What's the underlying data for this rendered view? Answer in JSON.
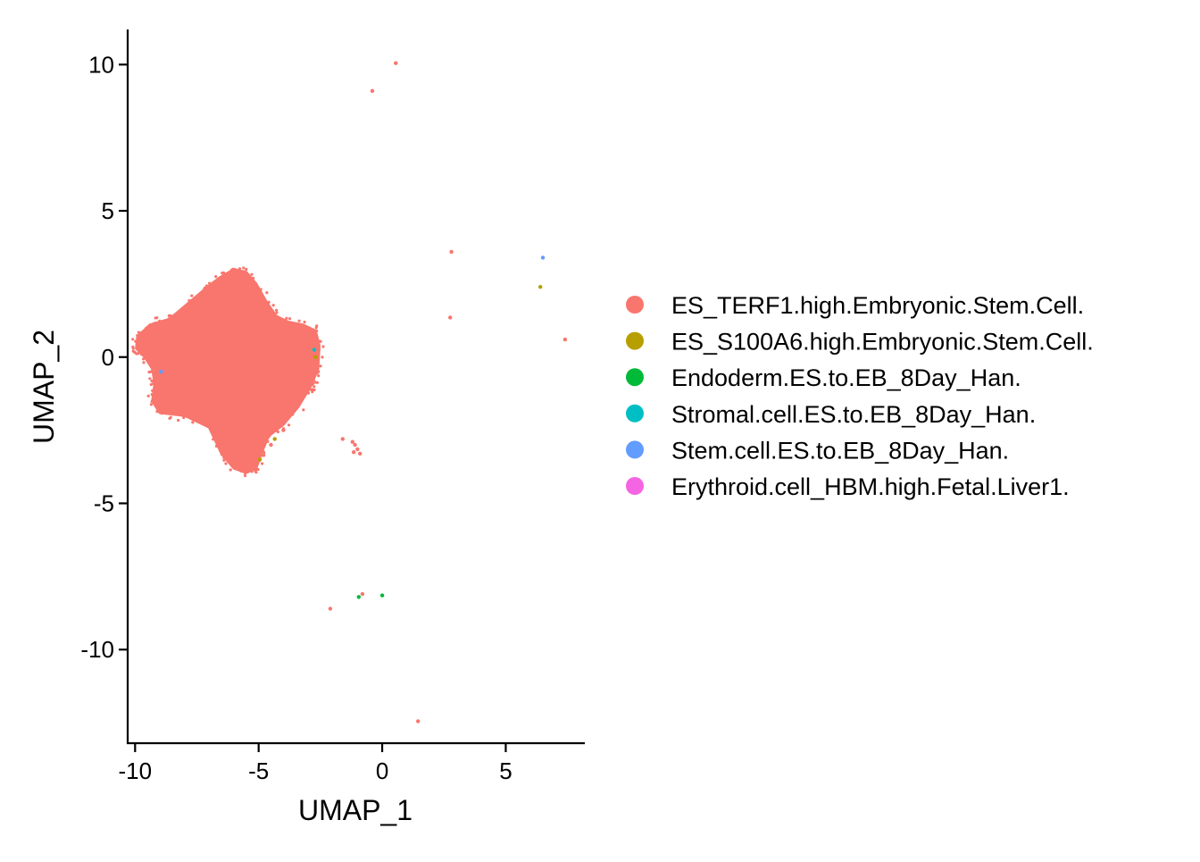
{
  "chart_data": {
    "type": "scatter",
    "title": "",
    "xlabel": "UMAP_1",
    "ylabel": "UMAP_2",
    "xlim": [
      -10.3,
      8.2
    ],
    "ylim": [
      -13.2,
      11.2
    ],
    "x_ticks": [
      -10,
      -5,
      0,
      5
    ],
    "x_tick_labels": [
      "-10",
      "-5",
      "0",
      "5"
    ],
    "y_ticks": [
      -10,
      -5,
      0,
      5,
      10
    ],
    "y_tick_labels": [
      "-10",
      "-5",
      "0",
      "5",
      "10"
    ],
    "grid": false,
    "legend_position": "right",
    "main_cluster": {
      "series": "ES_TERF1.high.Embryonic.Stem.Cell.",
      "x_range": [
        -9.9,
        -2.6
      ],
      "y_range": [
        -3.9,
        3.0
      ],
      "center": [
        -5.8,
        0.0
      ]
    },
    "series": [
      {
        "name": "ES_TERF1.high.Embryonic.Stem.Cell.",
        "color": "#F8766D",
        "points": [
          [
            0.55,
            10.05
          ],
          [
            -0.4,
            9.1
          ],
          [
            2.8,
            3.6
          ],
          [
            2.75,
            1.35
          ],
          [
            7.4,
            0.6
          ],
          [
            -1.6,
            -2.8
          ],
          [
            -1.2,
            -2.9
          ],
          [
            -1.1,
            -3.0
          ],
          [
            -1.0,
            -3.15
          ],
          [
            -1.15,
            -3.25
          ],
          [
            -0.9,
            -3.3
          ],
          [
            -0.8,
            -8.1
          ],
          [
            -2.1,
            -8.6
          ],
          [
            1.45,
            -12.45
          ],
          [
            -2.6,
            -0.5
          ],
          [
            -2.7,
            -0.2
          ],
          [
            -4.0,
            -2.5
          ],
          [
            -4.5,
            -3.0
          ]
        ]
      },
      {
        "name": "ES_S100A6.high.Embryonic.Stem.Cell.",
        "color": "#B79F00",
        "points": [
          [
            6.4,
            2.4
          ],
          [
            -4.35,
            -2.8
          ],
          [
            -4.95,
            -3.5
          ],
          [
            -2.7,
            0.0
          ]
        ]
      },
      {
        "name": "Endoderm.ES.to.EB_8Day_Han.",
        "color": "#00BA38",
        "points": [
          [
            -0.95,
            -8.2
          ],
          [
            0.0,
            -8.15
          ]
        ]
      },
      {
        "name": "Stromal.cell.ES.to.EB_8Day_Han.",
        "color": "#00BFC4",
        "points": [
          [
            -2.75,
            0.25
          ]
        ]
      },
      {
        "name": "Stem.cell.ES.to.EB_8Day_Han.",
        "color": "#619CFF",
        "points": [
          [
            6.5,
            3.4
          ],
          [
            -8.95,
            -0.5
          ]
        ]
      },
      {
        "name": "Erythroid.cell_HBM.high.Fetal.Liver1.",
        "color": "#F564E3",
        "points": []
      }
    ]
  }
}
